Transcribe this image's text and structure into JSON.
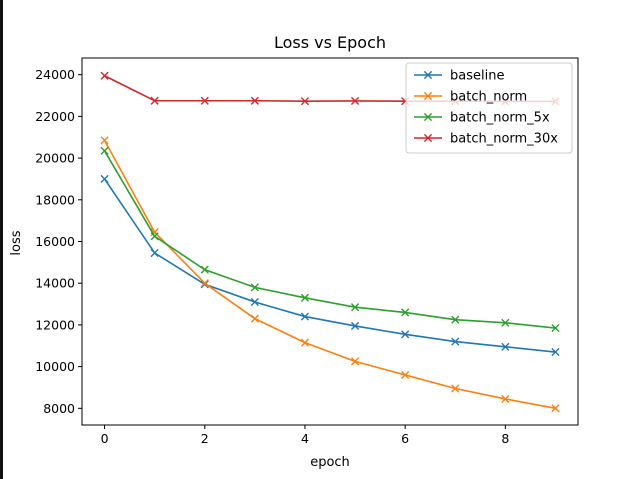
{
  "chart_data": {
    "type": "line",
    "title": "Loss vs Epoch",
    "xlabel": "epoch",
    "ylabel": "loss",
    "xlim": [
      -0.45,
      9.45
    ],
    "ylim": [
      7200,
      24800
    ],
    "xticks": [
      0,
      2,
      4,
      6,
      8
    ],
    "yticks": [
      8000,
      10000,
      12000,
      14000,
      16000,
      18000,
      20000,
      22000,
      24000
    ],
    "grid": false,
    "legend_position": "top-right",
    "marker": "x",
    "x": [
      0,
      1,
      2,
      3,
      4,
      5,
      6,
      7,
      8,
      9
    ],
    "series": [
      {
        "name": "baseline",
        "color": "#1f77b4",
        "values": [
          19000,
          15450,
          13950,
          13100,
          12400,
          11950,
          11550,
          11200,
          10950,
          10700
        ]
      },
      {
        "name": "batch_norm",
        "color": "#ff7f0e",
        "values": [
          20850,
          16450,
          14000,
          12300,
          11150,
          10250,
          9600,
          8950,
          8450,
          8000
        ]
      },
      {
        "name": "batch_norm_5x",
        "color": "#2ca02c",
        "values": [
          20350,
          16250,
          14650,
          13800,
          13300,
          12850,
          12600,
          12250,
          12100,
          11850
        ]
      },
      {
        "name": "batch_norm_30x",
        "color": "#d62728",
        "values": [
          23950,
          22750,
          22750,
          22750,
          22730,
          22740,
          22730,
          22730,
          22720,
          22720
        ]
      }
    ]
  }
}
